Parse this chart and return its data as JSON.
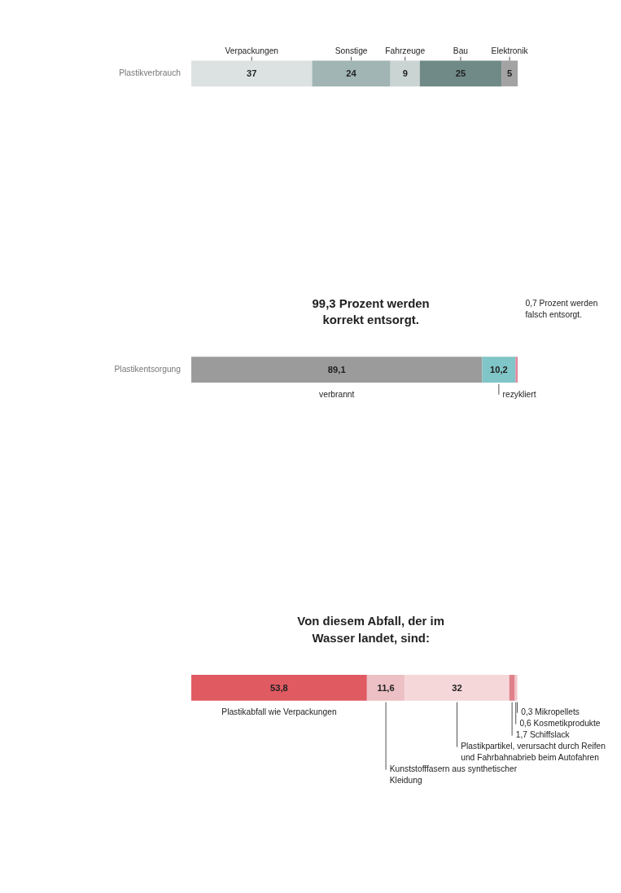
{
  "chart_data": [
    {
      "type": "bar",
      "orientation": "horizontal",
      "stacked": true,
      "categories": [
        "Plastikverbrauch"
      ],
      "series": [
        {
          "name": "Verpackungen",
          "color": "#dce2e2",
          "values": [
            37
          ],
          "value_labels": [
            "37"
          ]
        },
        {
          "name": "Sonstige",
          "color": "#a0b5b4",
          "values": [
            24
          ],
          "value_labels": [
            "24"
          ]
        },
        {
          "name": "Fahrzeuge",
          "color": "#c9d4d3",
          "values": [
            9
          ],
          "value_labels": [
            "9"
          ]
        },
        {
          "name": "Bau",
          "color": "#6f8a87",
          "values": [
            25
          ],
          "value_labels": [
            "25"
          ]
        },
        {
          "name": "Elektronik",
          "color": "#a3a3a3",
          "values": [
            5
          ],
          "value_labels": [
            "5"
          ]
        }
      ]
    },
    {
      "type": "bar",
      "orientation": "horizontal",
      "stacked": true,
      "categories": [
        "Plastikentsorgung"
      ],
      "annotations": [
        "99,3 Prozent werden korrekt entsorgt.",
        "0,7 Prozent werden falsch entsorgt."
      ],
      "series": [
        {
          "name": "verbrannt",
          "color": "#9b9b9b",
          "values": [
            89.1
          ],
          "value_labels": [
            "89,1"
          ]
        },
        {
          "name": "rezykliert",
          "color": "#80c5c7",
          "values": [
            10.2
          ],
          "value_labels": [
            "10,2"
          ]
        },
        {
          "color": "#e0889c",
          "values": [
            0.7
          ],
          "value_labels": [
            null
          ]
        }
      ]
    },
    {
      "type": "bar",
      "orientation": "horizontal",
      "stacked": true,
      "categories": [
        null
      ],
      "annotations": [
        "Von diesem Abfall, der im Wasser landet, sind:"
      ],
      "series": [
        {
          "name": "Plastikabfall wie Verpackungen",
          "color": "#e05a62",
          "values": [
            53.8
          ],
          "value_labels": [
            "53,8"
          ]
        },
        {
          "name": "Kunststofffasern aus synthetischer Kleidung",
          "color": "#ecc0c4",
          "values": [
            11.6
          ],
          "value_labels": [
            "11,6"
          ]
        },
        {
          "name": "Plastikpartikel, verursacht durch Reifen und Fahrbahnabrieb beim Autofahren",
          "color": "#f6d7d9",
          "values": [
            32
          ],
          "value_labels": [
            "32"
          ]
        },
        {
          "name": "Schiffslack",
          "color": "#e0808a",
          "values": [
            1.7
          ],
          "value_labels": [
            "1,7"
          ]
        },
        {
          "name": "Kosmetikprodukte",
          "color": "#f0c4c9",
          "values": [
            0.6
          ],
          "value_labels": [
            "0,6"
          ]
        },
        {
          "name": "Mikropellets",
          "color": "#f8dfe2",
          "values": [
            0.3
          ],
          "value_labels": [
            "0,3"
          ]
        }
      ]
    }
  ]
}
